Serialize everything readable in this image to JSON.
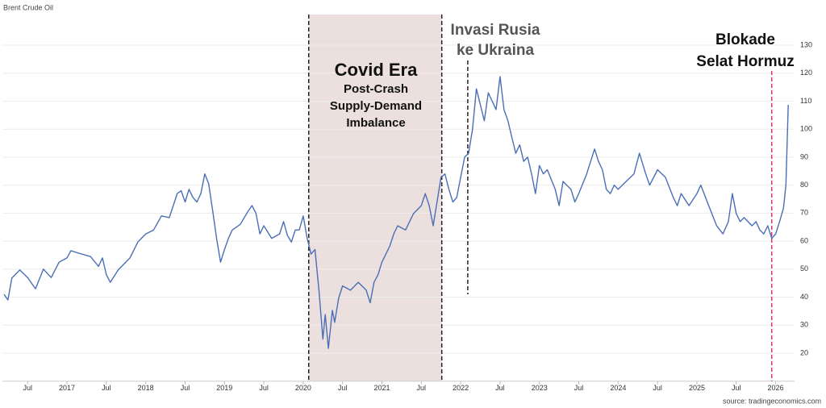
{
  "chart_data": {
    "type": "line",
    "title": "Brent Crude Oil",
    "source": "source: tradingeconomics.com",
    "color": "#4a6fb5",
    "grid": true,
    "xlim": [
      2016.18,
      2026.24
    ],
    "ylim": [
      10,
      140
    ],
    "yticks": [
      20,
      30,
      40,
      50,
      60,
      70,
      80,
      90,
      100,
      110,
      120,
      130
    ],
    "xticks": [
      {
        "value": 2016.5,
        "label": "Jul"
      },
      2017,
      {
        "value": 2017.5,
        "label": "Jul"
      },
      2018,
      {
        "value": 2018.5,
        "label": "Jul"
      },
      2019,
      {
        "value": 2019.5,
        "label": "Jul"
      },
      2020,
      {
        "value": 2020.5,
        "label": "Jul"
      },
      2021,
      {
        "value": 2021.5,
        "label": "Jul"
      },
      2022,
      {
        "value": 2022.5,
        "label": "Jul"
      },
      2023,
      {
        "value": 2023.5,
        "label": "Jul"
      },
      2024,
      {
        "value": 2024.5,
        "label": "Jul"
      },
      2025,
      {
        "value": 2025.5,
        "label": "Jul"
      },
      2026
    ],
    "x": [
      2016.2,
      2016.25,
      2016.3,
      2016.4,
      2016.5,
      2016.6,
      2016.7,
      2016.8,
      2016.9,
      2017.0,
      2017.05,
      2017.15,
      2017.3,
      2017.4,
      2017.45,
      2017.5,
      2017.55,
      2017.65,
      2017.8,
      2017.9,
      2018.0,
      2018.1,
      2018.2,
      2018.3,
      2018.35,
      2018.4,
      2018.45,
      2018.5,
      2018.55,
      2018.6,
      2018.65,
      2018.7,
      2018.75,
      2018.8,
      2018.85,
      2018.9,
      2018.95,
      2019.0,
      2019.05,
      2019.1,
      2019.2,
      2019.3,
      2019.35,
      2019.4,
      2019.45,
      2019.5,
      2019.6,
      2019.7,
      2019.75,
      2019.8,
      2019.85,
      2019.9,
      2019.95,
      2020.0,
      2020.05,
      2020.1,
      2020.15,
      2020.2,
      2020.25,
      2020.28,
      2020.32,
      2020.37,
      2020.4,
      2020.45,
      2020.5,
      2020.6,
      2020.7,
      2020.8,
      2020.85,
      2020.9,
      2020.95,
      2021.0,
      2021.1,
      2021.15,
      2021.2,
      2021.3,
      2021.4,
      2021.5,
      2021.55,
      2021.6,
      2021.65,
      2021.7,
      2021.75,
      2021.8,
      2021.85,
      2021.9,
      2021.95,
      2022.0,
      2022.05,
      2022.1,
      2022.15,
      2022.2,
      2022.25,
      2022.3,
      2022.35,
      2022.4,
      2022.45,
      2022.5,
      2022.55,
      2022.6,
      2022.65,
      2022.7,
      2022.75,
      2022.8,
      2022.85,
      2022.9,
      2022.95,
      2023.0,
      2023.05,
      2023.1,
      2023.2,
      2023.25,
      2023.3,
      2023.4,
      2023.45,
      2023.5,
      2023.6,
      2023.7,
      2023.75,
      2023.8,
      2023.85,
      2023.9,
      2023.95,
      2024.0,
      2024.1,
      2024.2,
      2024.27,
      2024.35,
      2024.4,
      2024.5,
      2024.6,
      2024.7,
      2024.75,
      2024.8,
      2024.9,
      2025.0,
      2025.05,
      2025.15,
      2025.25,
      2025.33,
      2025.4,
      2025.45,
      2025.5,
      2025.55,
      2025.6,
      2025.7,
      2025.75,
      2025.8,
      2025.85,
      2025.9,
      2025.95,
      2026.0,
      2026.05,
      2026.1,
      2026.13,
      2026.16
    ],
    "values": [
      41,
      39,
      46.8,
      49.7,
      47,
      43,
      50,
      47,
      52.5,
      54,
      56.6,
      55.7,
      54.5,
      51,
      54,
      48,
      45.3,
      49.7,
      54,
      59.7,
      62.6,
      64,
      69,
      68.4,
      72.7,
      77,
      78,
      74,
      78.5,
      75.6,
      74,
      77,
      84,
      80.5,
      71,
      61,
      52.5,
      57,
      61,
      64,
      66,
      70.7,
      72.7,
      70,
      62.6,
      65.5,
      61,
      62.6,
      67,
      62,
      59.7,
      64,
      64,
      69,
      61,
      55.4,
      57,
      42.5,
      25,
      33.8,
      21.7,
      35.3,
      31,
      39.6,
      44,
      42.5,
      45.3,
      42.5,
      38,
      45.3,
      48,
      52.5,
      58.3,
      62.6,
      65.5,
      64,
      69.8,
      72.7,
      77,
      72.7,
      65.5,
      74,
      82.8,
      84,
      78.5,
      74,
      75.6,
      82.8,
      90,
      91.4,
      100,
      114.4,
      108.7,
      103,
      113,
      110,
      107,
      118.8,
      107,
      103,
      97,
      91.4,
      94.4,
      88.5,
      90,
      84,
      77,
      87,
      84,
      85.5,
      78.5,
      72.7,
      81.3,
      78.5,
      74,
      77,
      84,
      92.9,
      88.5,
      85.5,
      78.5,
      77,
      80,
      78.5,
      81.3,
      84,
      91.4,
      84,
      80,
      85.5,
      82.8,
      75.6,
      72.7,
      77,
      72.7,
      77,
      80,
      72.7,
      65.5,
      62.6,
      67,
      77,
      69.8,
      67,
      68.4,
      65.5,
      67,
      64,
      62.6,
      65.5,
      61,
      62.6,
      67,
      71.8,
      80,
      108.7
    ],
    "shade": [
      2020.07,
      2021.76
    ],
    "event_lines": [
      {
        "x": 2020.07,
        "color": "#222222"
      },
      {
        "x": 2021.76,
        "color": "#222222"
      },
      {
        "x": 2022.09,
        "color": "#222222"
      },
      {
        "x": 2025.95,
        "color": "#d6336c"
      }
    ],
    "annotations": [
      {
        "lines": [
          "Covid Era",
          "Post-Crash",
          "Supply-Demand",
          "Imbalance"
        ]
      },
      {
        "lines": [
          "Invasi Rusia",
          "ke Ukraina"
        ]
      },
      {
        "lines": [
          "Blokade",
          "Selat Hormuz"
        ]
      }
    ]
  }
}
